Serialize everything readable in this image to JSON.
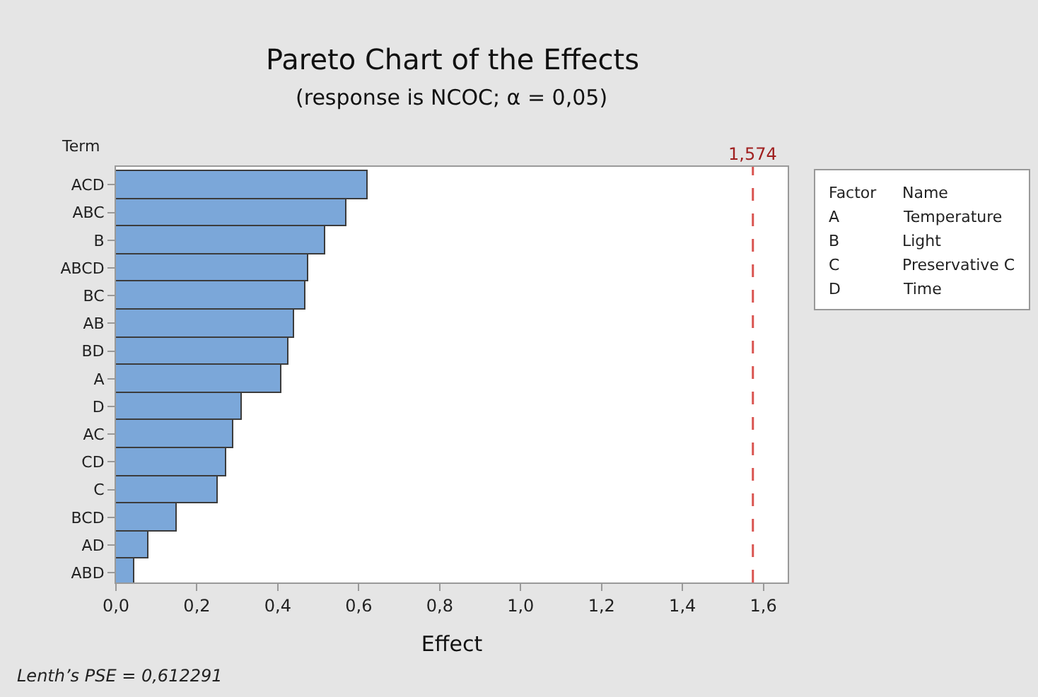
{
  "chart_data": {
    "type": "bar",
    "orientation": "horizontal",
    "title": "Pareto Chart of the Effects",
    "subtitle": "(response is NCOC; α = 0,05)",
    "xlabel": "Effect",
    "ylabel": "Term",
    "categories": [
      "ACD",
      "ABC",
      "B",
      "ABCD",
      "BC",
      "AB",
      "BD",
      "A",
      "D",
      "AC",
      "CD",
      "C",
      "BCD",
      "AD",
      "ABD"
    ],
    "values": [
      0.623,
      0.571,
      0.516,
      0.476,
      0.467,
      0.442,
      0.428,
      0.408,
      0.312,
      0.291,
      0.271,
      0.25,
      0.149,
      0.082,
      0.044
    ],
    "color": "#7ba7d9",
    "xlim": [
      0,
      1.66
    ],
    "xticks": [
      {
        "value": 0,
        "label": "0,0"
      },
      {
        "value": 0.2,
        "label": "0,2"
      },
      {
        "value": 0.4,
        "label": "0,4"
      },
      {
        "value": 0.6,
        "label": "0,6"
      },
      {
        "value": 0.8,
        "label": "0,8"
      },
      {
        "value": 1.0,
        "label": "1,0"
      },
      {
        "value": 1.2,
        "label": "1,2"
      },
      {
        "value": 1.4,
        "label": "1,4"
      },
      {
        "value": 1.6,
        "label": "1,6"
      }
    ],
    "ref_lines": [
      {
        "axis": "x",
        "value": 1.574,
        "label": "1,574",
        "color": "#d9534f",
        "line_style": "dashed"
      }
    ],
    "annotations": [
      "Lenth’s PSE = 0,612291",
      "Factor",
      "Name",
      "A",
      "Temperature",
      "B",
      "Light",
      "C",
      "Preservative C",
      "D",
      "Time"
    ]
  }
}
